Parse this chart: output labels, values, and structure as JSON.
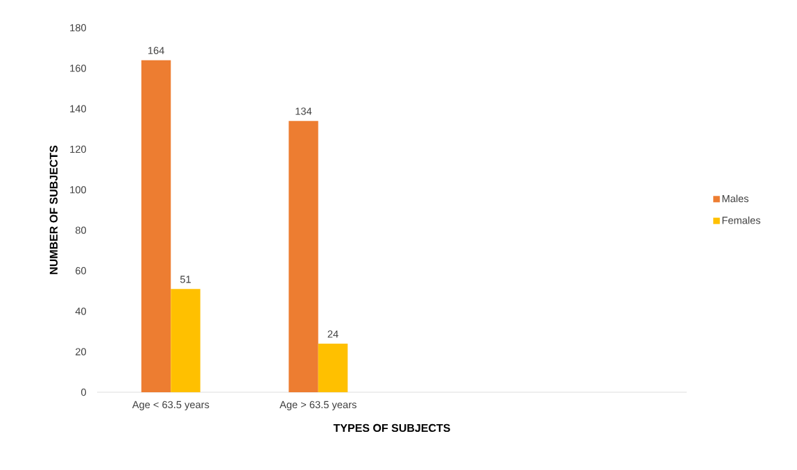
{
  "chart_data": {
    "type": "bar",
    "xlabel": "TYPES OF SUBJECTS",
    "ylabel": "NUMBER OF SUBJECTS",
    "categories": [
      "Age < 63.5 years",
      "Age > 63.5 years",
      null,
      null
    ],
    "series": [
      {
        "name": "Males",
        "color": "#ed7d31",
        "values": [
          164,
          134,
          null,
          null
        ]
      },
      {
        "name": "Females",
        "color": "#ffc000",
        "values": [
          51,
          24,
          null,
          null
        ]
      }
    ],
    "ylim": [
      0,
      180
    ],
    "yticks": [
      0,
      20,
      40,
      60,
      80,
      100,
      120,
      140,
      160,
      180
    ],
    "data_labels": true,
    "legend": "right",
    "grid": false
  }
}
